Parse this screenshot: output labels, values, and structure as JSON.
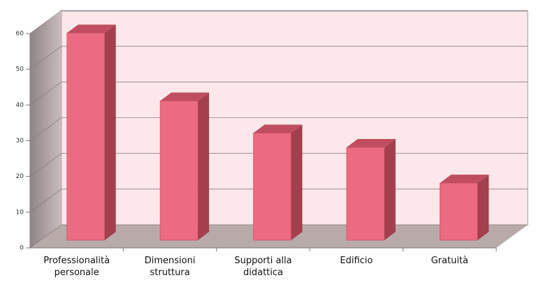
{
  "chart_data": {
    "type": "bar3d",
    "categories": [
      "Professionalità personale",
      "Dimensioni struttura",
      "Supporti alla didattica",
      "Edificio",
      "Gratuità"
    ],
    "values": [
      58,
      39,
      30,
      26,
      16
    ],
    "color": "#ec6b80",
    "ylim": [
      0,
      60
    ],
    "yticks": [
      0,
      10,
      20,
      30,
      40,
      50,
      60
    ],
    "grid": true
  }
}
